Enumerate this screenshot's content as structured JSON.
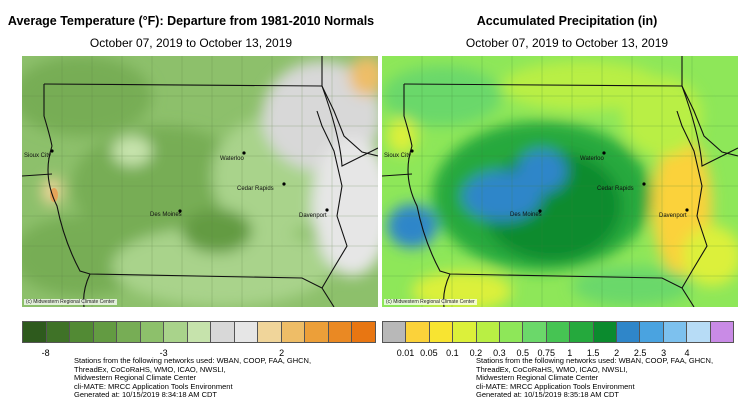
{
  "temperature": {
    "title": "Average Temperature (°F): Departure from 1981-2010 Normals",
    "subtitle": "October 07, 2019 to October 13, 2019",
    "credit": "(c) Midwestern Regional Climate Center",
    "legend_colors": [
      "#2e5a1d",
      "#3f7227",
      "#528a34",
      "#639b42",
      "#77ad55",
      "#8dc06b",
      "#a9d38b",
      "#c6e3ac",
      "#d8d8d8",
      "#e6e6e6",
      "#f0d59a",
      "#eebd67",
      "#ec9f39",
      "#ea8923",
      "#e87612"
    ],
    "legend_ticks": [
      "-8",
      "-3",
      "2"
    ],
    "footer": [
      "Stations from the following networks used: WBAN, COOP, FAA, GHCN,",
      "ThreadEx, CoCoRaHS, WMO, ICAO, NWSLI,",
      "Midwestern Regional Climate Center",
      "cli-MATE: MRCC Application Tools Environment",
      "Generated at: 10/15/2019 8:34:18 AM CDT"
    ]
  },
  "precipitation": {
    "title": "Accumulated Precipitation (in)",
    "subtitle": "October 07, 2019 to October 13, 2019",
    "credit": "(c) Midwestern Regional Climate Center",
    "legend_colors": [
      "#b8b8b8",
      "#fbd23a",
      "#f8e431",
      "#dcf03a",
      "#b9ef44",
      "#8ee759",
      "#6bd86a",
      "#46c453",
      "#25a93d",
      "#0b8b2e",
      "#2f86c9",
      "#4aa3e0",
      "#7dc1ee",
      "#b7dcf6",
      "#c98be6"
    ],
    "legend_ticks": [
      "0.01",
      "0.05",
      "0.1",
      "0.2",
      "0.3",
      "0.5",
      "0.75",
      "1",
      "1.5",
      "2",
      "2.5",
      "3",
      "4"
    ],
    "footer": [
      "Stations from the following networks used: WBAN, COOP, FAA, GHCN,",
      "ThreadEx, CoCoRaHS, WMO, ICAO, NWSLI,",
      "Midwestern Regional Climate Center",
      "cli-MATE: MRCC Application Tools Environment",
      "Generated at: 10/15/2019 8:35:18 AM CDT"
    ]
  },
  "cities": [
    "Sioux City",
    "Waterloo",
    "Cedar Rapids",
    "Des Moines",
    "Davenport"
  ]
}
